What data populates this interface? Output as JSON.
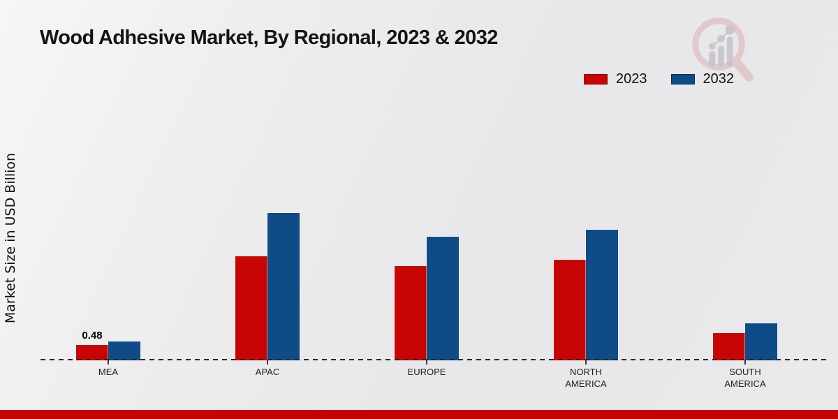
{
  "title": "Wood Adhesive Market, By Regional, 2023 & 2032",
  "watermark_icon": "magnifier-growth-chart-watermark",
  "colors": {
    "series_2023": "#c90404",
    "series_2032": "#0f4c87",
    "bottom_band": "#c20404",
    "baseline": "#262626",
    "watermark_ring": "#dcaaae",
    "watermark_bars": "#c4c4c8"
  },
  "legend": {
    "position": "top-right",
    "items": [
      {
        "label": "2023",
        "color": "#c90404"
      },
      {
        "label": "2032",
        "color": "#0f4c87"
      }
    ]
  },
  "chart_data": {
    "type": "bar",
    "title": "Wood Adhesive Market, By Regional, 2023 & 2032",
    "xlabel": "",
    "ylabel": "Market Size in USD Billion",
    "categories": [
      "MEA",
      "APAC",
      "EUROPE",
      "NORTH AMERICA",
      "SOUTH AMERICA"
    ],
    "series": [
      {
        "name": "2023",
        "color": "#c90404",
        "values": [
          0.48,
          3.21,
          2.9,
          3.1,
          0.83
        ]
      },
      {
        "name": "2032",
        "color": "#0f4c87",
        "values": [
          0.57,
          4.53,
          3.81,
          4.02,
          1.15
        ]
      }
    ],
    "data_labels": [
      {
        "category": "MEA",
        "series": "2023",
        "text": "0.48"
      }
    ],
    "ylim": [
      0,
      5
    ],
    "y_axis_ticks_visible": false,
    "grid": false,
    "baseline_style": "dashed",
    "legend_position": "top-right"
  }
}
